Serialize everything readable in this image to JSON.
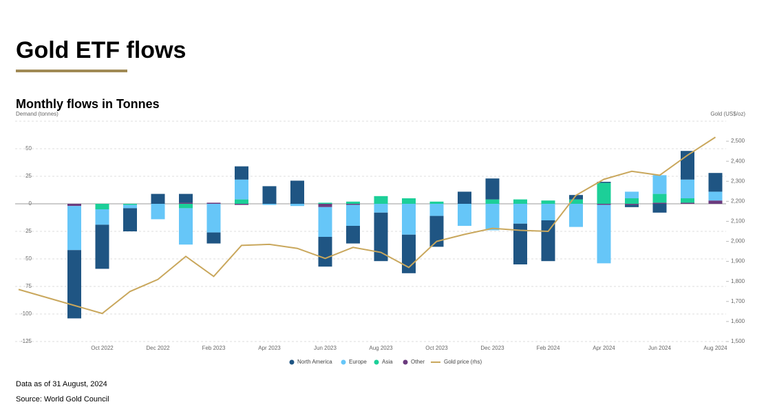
{
  "chart_data": {
    "type": "bar",
    "title": "Gold ETF flows",
    "subtitle": "Monthly flows in Tonnes",
    "y_label": "Demand (tonnes)",
    "y2_label": "Gold (US$/oz)",
    "categories": [
      null,
      null,
      null,
      "Oct 2022",
      null,
      "Dec 2022",
      null,
      "Feb 2023",
      null,
      "Apr 2023",
      null,
      "Jun 2023",
      null,
      "Aug 2023",
      null,
      "Oct 2023",
      null,
      "Dec 2023",
      null,
      "Feb 2024",
      null,
      "Apr 2024",
      null,
      "Jun 2024",
      null,
      "Aug 2024"
    ],
    "series": [
      {
        "name": "North America",
        "color": "#1f5583",
        "values": [
          null,
          null,
          -62,
          -40,
          -21,
          9,
          8,
          -10,
          12,
          16,
          21,
          -27,
          -16,
          -44,
          -35,
          -28,
          11,
          19,
          -37,
          -37,
          4,
          1,
          -2,
          -8,
          26,
          17
        ]
      },
      {
        "name": "Europe",
        "color": "#66c6f8",
        "values": [
          null,
          null,
          -40,
          -14,
          -3,
          -14,
          -33,
          -26,
          18,
          -1,
          -2,
          -27,
          -19,
          -8,
          -28,
          -11,
          -20,
          -24,
          -18,
          -15,
          -21,
          -53,
          6,
          17,
          17,
          8
        ]
      },
      {
        "name": "Asia",
        "color": "#1ccf98",
        "values": [
          null,
          null,
          0,
          -5,
          -1,
          0,
          -4,
          0,
          4,
          0,
          0,
          1,
          2,
          7,
          5,
          2,
          0,
          4,
          4,
          3,
          4,
          19,
          5,
          8,
          4,
          0
        ]
      },
      {
        "name": "Other",
        "color": "#6b3b7e",
        "values": [
          null,
          null,
          -2,
          0,
          0,
          0,
          1,
          1,
          -1,
          0,
          0,
          -3,
          -1,
          0,
          0,
          0,
          0,
          0,
          0,
          0,
          0,
          -1,
          -1,
          1,
          1,
          3
        ]
      },
      {
        "name": "Gold price (rhs)",
        "color": "#c9a75c",
        "type": "line",
        "axis": "y2",
        "values": [
          1760,
          1720,
          1680,
          1640,
          1750,
          1810,
          1925,
          1825,
          1980,
          1985,
          1965,
          1915,
          1970,
          1945,
          1870,
          2000,
          2035,
          2065,
          2055,
          2050,
          2230,
          2310,
          2350,
          2330,
          2430,
          2520
        ]
      }
    ],
    "ylim": [
      -125,
      75
    ],
    "yticks": [
      50,
      25,
      0,
      -25,
      -50,
      -75,
      -100,
      -125
    ],
    "y2lim": [
      1500,
      2600
    ],
    "y2ticks": [
      {
        "value": 2500,
        "label": "2,500"
      },
      {
        "value": 2400,
        "label": "2,400"
      },
      {
        "value": 2300,
        "label": "2,300"
      },
      {
        "value": 2200,
        "label": "2,200"
      },
      {
        "value": 2100,
        "label": "2,100"
      },
      {
        "value": 2000,
        "label": "2,000"
      },
      {
        "value": 1900,
        "label": "1,900"
      },
      {
        "value": 1800,
        "label": "1,800"
      },
      {
        "value": 1700,
        "label": "1,700"
      },
      {
        "value": 1600,
        "label": "1,600"
      },
      {
        "value": 1500,
        "label": "1,500"
      }
    ],
    "grid": true,
    "legend": "bottom",
    "notes": [
      "Data as of 31 August, 2024",
      "Source: World Gold Council"
    ]
  }
}
